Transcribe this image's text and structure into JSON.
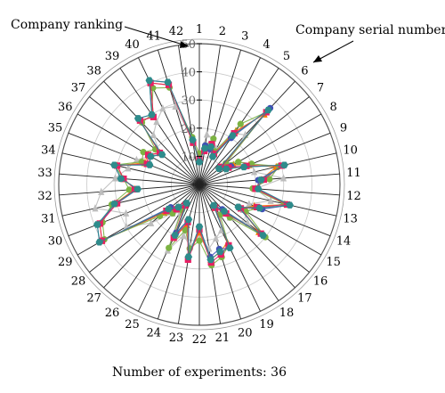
{
  "chart_data": {
    "type": "radar",
    "annotations": {
      "ranking": "Company ranking",
      "serial": "Company serial number",
      "experiments": "Number of experiments: 36"
    },
    "categories": [
      "1",
      "2",
      "3",
      "4",
      "5",
      "6",
      "7",
      "8",
      "9",
      "10",
      "11",
      "12",
      "13",
      "14",
      "15",
      "16",
      "17",
      "18",
      "19",
      "20",
      "21",
      "22",
      "23",
      "24",
      "25",
      "26",
      "27",
      "28",
      "29",
      "30",
      "31",
      "32",
      "33",
      "34",
      "35",
      "36",
      "37",
      "38",
      "39",
      "40",
      "41",
      "42"
    ],
    "radial_ticks": [
      "10",
      "20",
      "30",
      "40",
      "50"
    ],
    "rlim": [
      0,
      50
    ],
    "series": [
      {
        "color": "#2e8b8b",
        "marker": "hexagon",
        "values": [
          8,
          13,
          14,
          11,
          21,
          36,
          9,
          11,
          17,
          31,
          22,
          21,
          33,
          23,
          16,
          29,
          13,
          9,
          25,
          25,
          27,
          15,
          26,
          13,
          20,
          8,
          11,
          14,
          41,
          39,
          31,
          22,
          28,
          31,
          19,
          20,
          17,
          32,
          30,
          41,
          38,
          16
        ]
      },
      {
        "color": "#e91e63",
        "marker": "square",
        "values": [
          9,
          12,
          15,
          12,
          22,
          35,
          10,
          12,
          18,
          30,
          23,
          20,
          32,
          22,
          17,
          28,
          14,
          10,
          24,
          26,
          28,
          16,
          27,
          14,
          21,
          9,
          12,
          15,
          40,
          38,
          30,
          23,
          27,
          30,
          20,
          21,
          18,
          31,
          29,
          40,
          37,
          15
        ]
      },
      {
        "color": "#3f51b5",
        "marker": "circle",
        "values": [
          8,
          14,
          13,
          11,
          20,
          37,
          9,
          13,
          17,
          31,
          21,
          21,
          33,
          24,
          16,
          29,
          12,
          9,
          25,
          24,
          26,
          15,
          26,
          13,
          19,
          8,
          11,
          13,
          41,
          39,
          30,
          22,
          28,
          31,
          19,
          20,
          17,
          32,
          30,
          41,
          38,
          16
        ]
      },
      {
        "color": "#7cb342",
        "marker": "circle",
        "values": [
          11,
          14,
          17,
          13,
          26,
          35,
          12,
          16,
          20,
          29,
          25,
          19,
          31,
          23,
          19,
          30,
          16,
          13,
          24,
          27,
          29,
          20,
          23,
          17,
          25,
          11,
          14,
          18,
          39,
          37,
          32,
          25,
          27,
          31,
          22,
          23,
          20,
          30,
          30,
          38,
          36,
          17
        ]
      },
      {
        "color": "#f57c00",
        "marker": "triangle",
        "values": [
          9,
          13,
          14,
          12,
          23,
          34,
          10,
          14,
          19,
          28,
          22,
          20,
          32,
          21,
          17,
          27,
          14,
          10,
          23,
          25,
          27,
          17,
          25,
          15,
          21,
          9,
          12,
          16,
          40,
          38,
          31,
          23,
          27,
          30,
          21,
          21,
          18,
          31,
          29,
          40,
          37,
          15
        ]
      },
      {
        "color": "#bdbdbd",
        "marker": "triangle",
        "values": [
          10,
          18,
          17,
          14,
          22,
          24,
          12,
          16,
          20,
          20,
          30,
          20,
          26,
          19,
          18,
          22,
          16,
          13,
          18,
          20,
          23,
          19,
          22,
          19,
          26,
          12,
          14,
          22,
          30,
          28,
          38,
          35,
          30,
          26,
          24,
          20,
          18,
          24,
          27,
          30,
          29,
          16
        ]
      }
    ]
  }
}
